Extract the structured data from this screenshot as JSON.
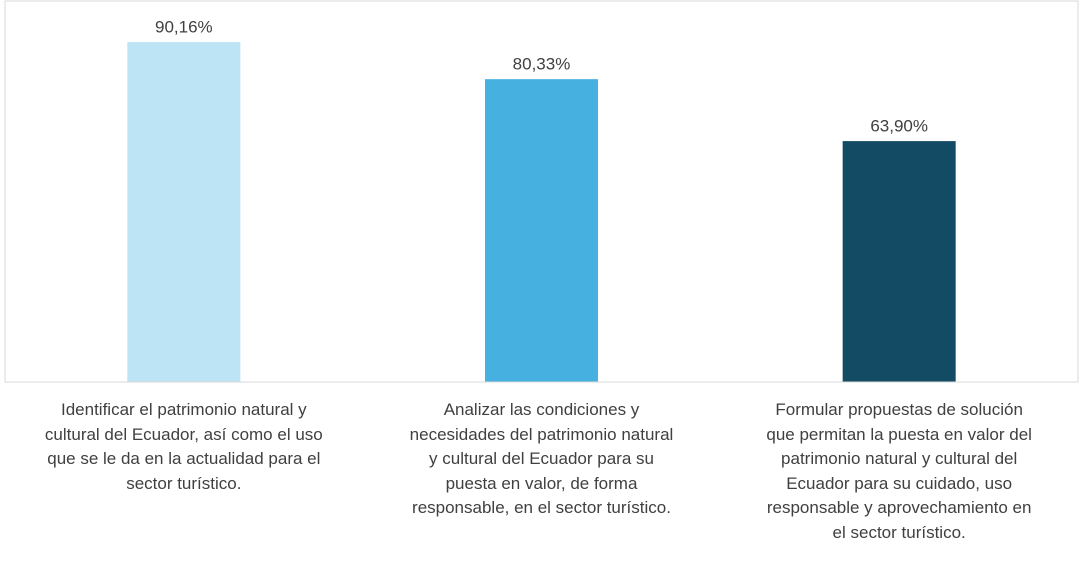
{
  "chart_data": {
    "type": "bar",
    "categories": [
      "Identificar  el patrimonio natural y\ncultural del Ecuador, así como el uso\nque se le da en la actualidad para el\nsector turístico.",
      "Analizar las condiciones y\nnecesidades del patrimonio natural\ny cultural del Ecuador para su\npuesta en valor, de forma\nresponsable, en el sector turístico.",
      "Formular propuestas de solución\nque permitan la puesta en valor del\npatrimonio natural y cultural del\nEcuador para su cuidado, uso\nresponsable y aprovechamiento en\nel sector turístico."
    ],
    "values": [
      90.16,
      80.33,
      63.9
    ],
    "value_labels": [
      "90,16%",
      "80,33%",
      "63,90%"
    ],
    "colors": [
      "#bde4f4",
      "#46b0e0",
      "#134b65"
    ],
    "ylim": [
      0,
      100
    ]
  }
}
